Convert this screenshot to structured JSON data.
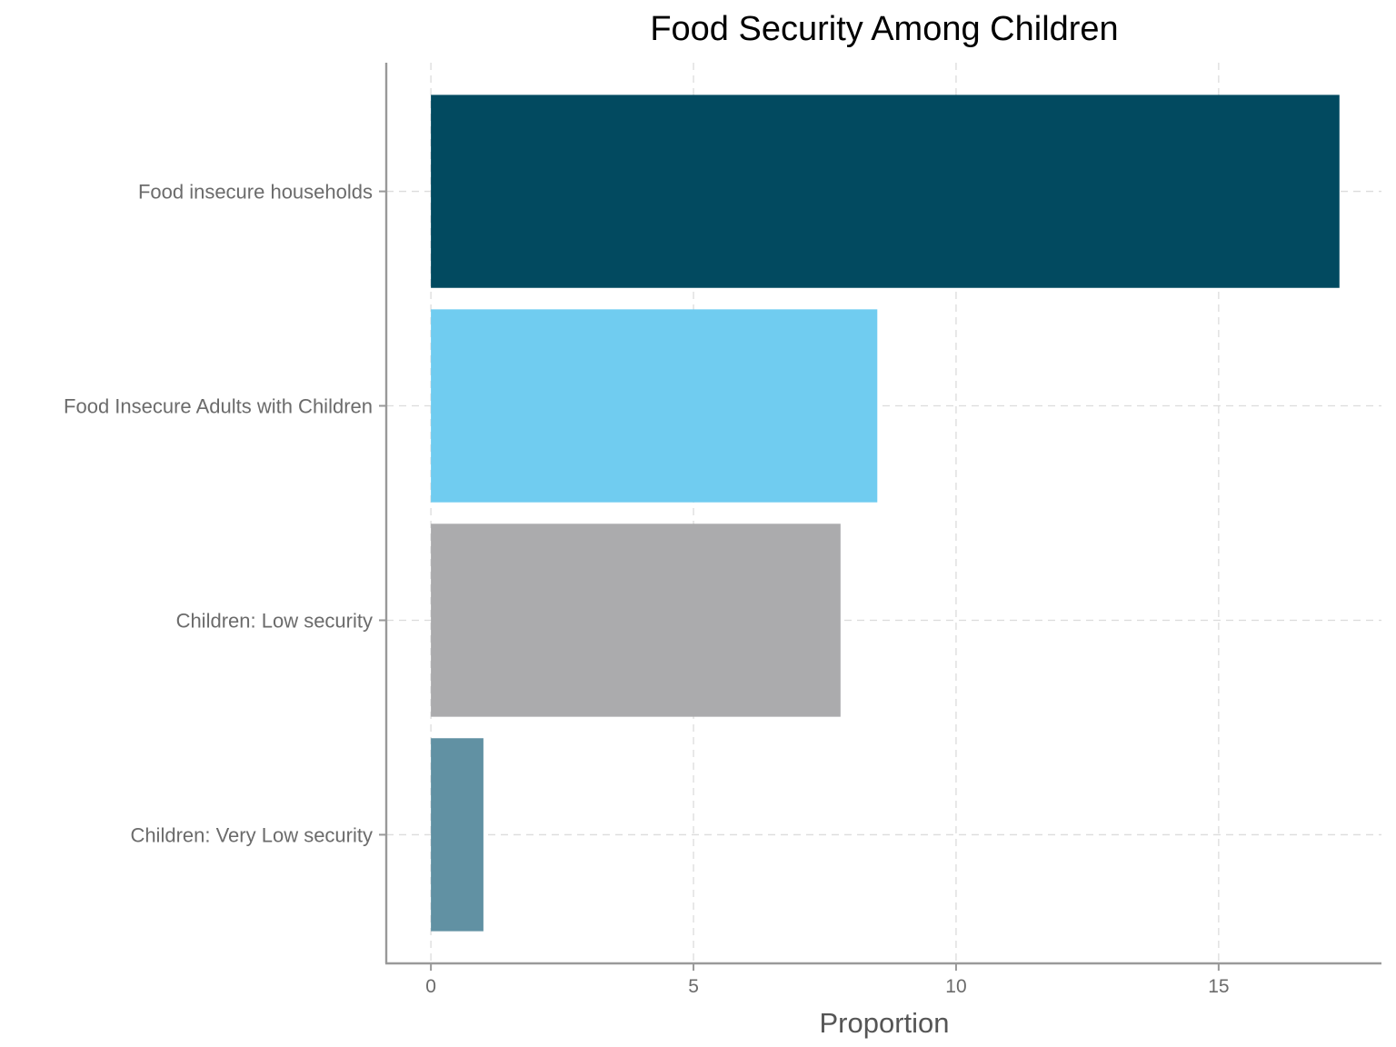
{
  "chart_data": {
    "type": "bar",
    "orientation": "horizontal",
    "title": "Food Security Among Children",
    "xlabel": "Proportion",
    "ylabel": "",
    "categories": [
      "Food insecure households",
      "Food Insecure Adults with Children",
      "Children: Low security",
      "Children: Very Low security"
    ],
    "values": [
      17.3,
      8.5,
      7.8,
      1.0
    ],
    "colors": [
      "#024a60",
      "#70ccf0",
      "#ababad",
      "#6191a3"
    ],
    "xlim": [
      -0.85,
      18.1
    ],
    "xticks": [
      0,
      5,
      10,
      15
    ],
    "xtick_labels": [
      "0",
      "5",
      "10",
      "15"
    ],
    "grid": true,
    "legend": "none"
  }
}
